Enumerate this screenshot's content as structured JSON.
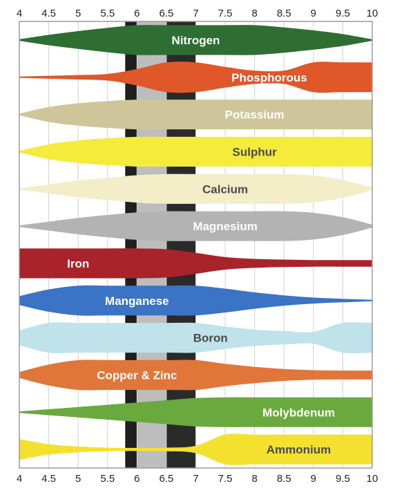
{
  "chart_data": {
    "type": "area",
    "xlim": [
      4,
      10
    ],
    "ticks_top": [
      "4",
      "4.5",
      "5",
      "5.5",
      "6",
      "6.5",
      "7",
      "7.5",
      "8",
      "8.5",
      "9",
      "9.5",
      "10"
    ],
    "ticks_bottom": [
      "4",
      "4.5",
      "5",
      "5.5",
      "6",
      "6.5",
      "7",
      "7.5",
      "8",
      "8.5",
      "9",
      "9.5",
      "10"
    ],
    "x": [
      4,
      4.5,
      5,
      5.5,
      6,
      6.5,
      7,
      7.5,
      8,
      8.5,
      9,
      9.5,
      10
    ],
    "grid": "vertical",
    "shaded_bands": [
      {
        "from": 5.8,
        "to": 6.0,
        "color": "#1f1f1f"
      },
      {
        "from": 6.0,
        "to": 6.5,
        "color": "#bdbdbd"
      },
      {
        "from": 6.5,
        "to": 7.0,
        "color": "#2a2a2a"
      }
    ],
    "series": [
      {
        "name": "Nitrogen",
        "color": "#2f6e33",
        "label_color": "#ffffff",
        "values": [
          0.05,
          0.35,
          0.6,
          0.82,
          1.0,
          1.0,
          1.0,
          1.0,
          1.0,
          0.85,
          0.65,
          0.4,
          0.05
        ]
      },
      {
        "name": "Phosphorous",
        "color": "#e0572a",
        "label_color": "#ffffff",
        "values": [
          0.05,
          0.1,
          0.15,
          0.22,
          0.55,
          1.0,
          1.0,
          0.7,
          0.45,
          0.45,
          1.0,
          1.0,
          1.0
        ]
      },
      {
        "name": "Potassium",
        "color": "#cfc59a",
        "label_color": "#ffffff",
        "values": [
          0.05,
          0.5,
          0.75,
          0.9,
          1.0,
          1.0,
          1.0,
          1.0,
          1.0,
          1.0,
          1.0,
          1.0,
          1.0
        ]
      },
      {
        "name": "Sulphur",
        "color": "#f4eb3a",
        "label_color": "#4a4a4a",
        "values": [
          0.05,
          0.5,
          0.75,
          0.9,
          1.0,
          1.0,
          1.0,
          1.0,
          1.0,
          1.0,
          1.0,
          1.0,
          1.0
        ]
      },
      {
        "name": "Calcium",
        "color": "#f3edc8",
        "label_color": "#4a4a4a",
        "values": [
          0.05,
          0.3,
          0.55,
          0.75,
          0.92,
          1.0,
          1.0,
          1.0,
          1.0,
          1.0,
          0.9,
          0.6,
          0.1
        ]
      },
      {
        "name": "Magnesium",
        "color": "#b3b3b3",
        "label_color": "#ffffff",
        "values": [
          0.05,
          0.3,
          0.55,
          0.75,
          0.92,
          1.0,
          1.0,
          1.0,
          1.0,
          1.0,
          0.9,
          0.6,
          0.1
        ]
      },
      {
        "name": "Iron",
        "color": "#a8232a",
        "label_color": "#ffffff",
        "values": [
          1.0,
          1.0,
          1.0,
          1.0,
          1.0,
          0.95,
          0.7,
          0.42,
          0.3,
          0.25,
          0.22,
          0.22,
          0.22
        ]
      },
      {
        "name": "Manganese",
        "color": "#3b73c5",
        "label_color": "#ffffff",
        "values": [
          0.3,
          0.75,
          1.0,
          1.0,
          1.0,
          1.0,
          1.0,
          0.8,
          0.55,
          0.35,
          0.2,
          0.12,
          0.05
        ]
      },
      {
        "name": "Boron",
        "color": "#bfe2eb",
        "label_color": "#4a4a4a",
        "values": [
          0.5,
          1.0,
          1.0,
          1.0,
          1.0,
          1.0,
          1.0,
          0.75,
          0.55,
          0.45,
          0.4,
          1.0,
          1.0
        ]
      },
      {
        "name": "Copper & Zinc",
        "color": "#e0763a",
        "label_color": "#ffffff",
        "values": [
          0.2,
          0.7,
          1.0,
          1.0,
          1.0,
          1.0,
          1.0,
          0.75,
          0.55,
          0.4,
          0.32,
          0.3,
          0.3
        ]
      },
      {
        "name": "Molybdenum",
        "color": "#6aa93e",
        "label_color": "#ffffff",
        "values": [
          0.05,
          0.2,
          0.35,
          0.5,
          0.65,
          0.8,
          0.95,
          1.0,
          1.0,
          1.0,
          1.0,
          1.0,
          1.0
        ]
      },
      {
        "name": "Ammonium",
        "color": "#f4e12f",
        "label_color": "#4a4a4a",
        "values": [
          0.7,
          0.35,
          0.2,
          0.12,
          0.1,
          0.12,
          0.25,
          1.0,
          1.0,
          1.0,
          1.0,
          1.0,
          1.0
        ]
      }
    ]
  }
}
